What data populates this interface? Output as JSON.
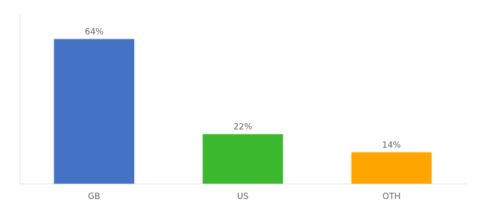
{
  "chart_data": {
    "type": "bar",
    "categories": [
      "GB",
      "US",
      "OTH"
    ],
    "values": [
      64,
      22,
      14
    ],
    "value_labels": [
      "64%",
      "22%",
      "14%"
    ],
    "colors": [
      "#4472C4",
      "#3CB82E",
      "#FFA500"
    ],
    "ylim": [
      0,
      75
    ],
    "grid": false,
    "data_labels": true,
    "tick_labels": "x"
  }
}
